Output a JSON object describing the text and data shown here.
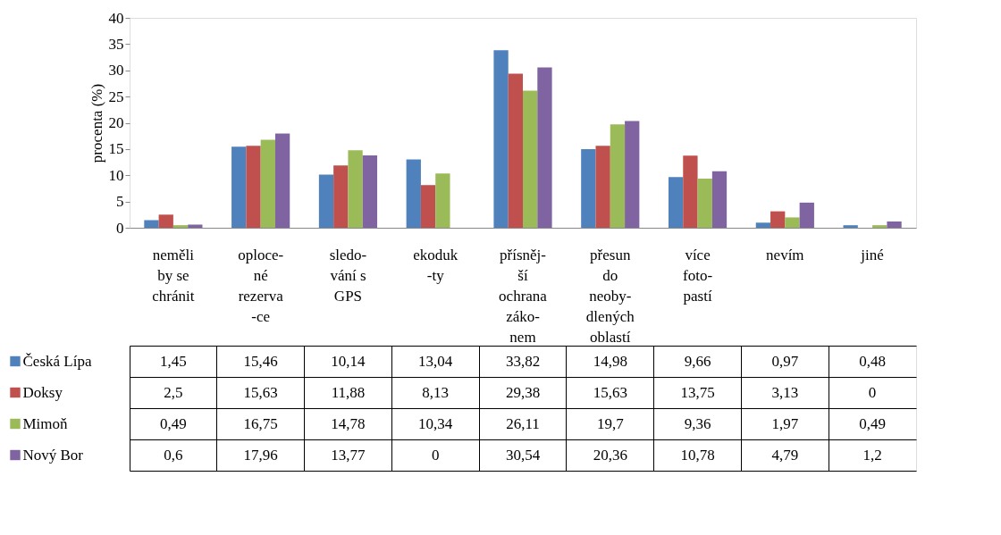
{
  "chart_data": {
    "type": "bar",
    "ylabel": "procenta (%)",
    "categories": [
      "neměli\nby se\nchránit",
      "oploce-\nné\nrezerva\n-ce",
      "sledo-\nvání s\nGPS",
      "ekoduk\n-ty",
      "přísněj-\nší\nochrana\nzáko-\nnem",
      "přesun\ndo\nneoby-\ndlených\noblastí",
      "více\nfoto-\npastí",
      "nevím",
      "jiné"
    ],
    "series": [
      {
        "name": "Česká Lípa",
        "color": "#4f81bd",
        "values": [
          1.45,
          15.46,
          10.14,
          13.04,
          33.82,
          14.98,
          9.66,
          0.97,
          0.48
        ],
        "value_labels": [
          "1,45",
          "15,46",
          "10,14",
          "13,04",
          "33,82",
          "14,98",
          "9,66",
          "0,97",
          "0,48"
        ]
      },
      {
        "name": "Doksy",
        "color": "#c0504d",
        "values": [
          2.5,
          15.63,
          11.88,
          8.13,
          29.38,
          15.63,
          13.75,
          3.13,
          0
        ],
        "value_labels": [
          "2,5",
          "15,63",
          "11,88",
          "8,13",
          "29,38",
          "15,63",
          "13,75",
          "3,13",
          "0"
        ]
      },
      {
        "name": "Mimoň",
        "color": "#9bbb59",
        "values": [
          0.49,
          16.75,
          14.78,
          10.34,
          26.11,
          19.7,
          9.36,
          1.97,
          0.49
        ],
        "value_labels": [
          "0,49",
          "16,75",
          "14,78",
          "10,34",
          "26,11",
          "19,7",
          "9,36",
          "1,97",
          "0,49"
        ]
      },
      {
        "name": "Nový Bor",
        "color": "#8064a2",
        "values": [
          0.6,
          17.96,
          13.77,
          0,
          30.54,
          20.36,
          10.78,
          4.79,
          1.2
        ],
        "value_labels": [
          "0,6",
          "17,96",
          "13,77",
          "0",
          "30,54",
          "20,36",
          "10,78",
          "4,79",
          "1,2"
        ]
      }
    ],
    "ylim": [
      0,
      40
    ],
    "yticks": [
      0,
      5,
      10,
      15,
      20,
      25,
      30,
      35,
      40
    ],
    "legend": "bottom"
  }
}
